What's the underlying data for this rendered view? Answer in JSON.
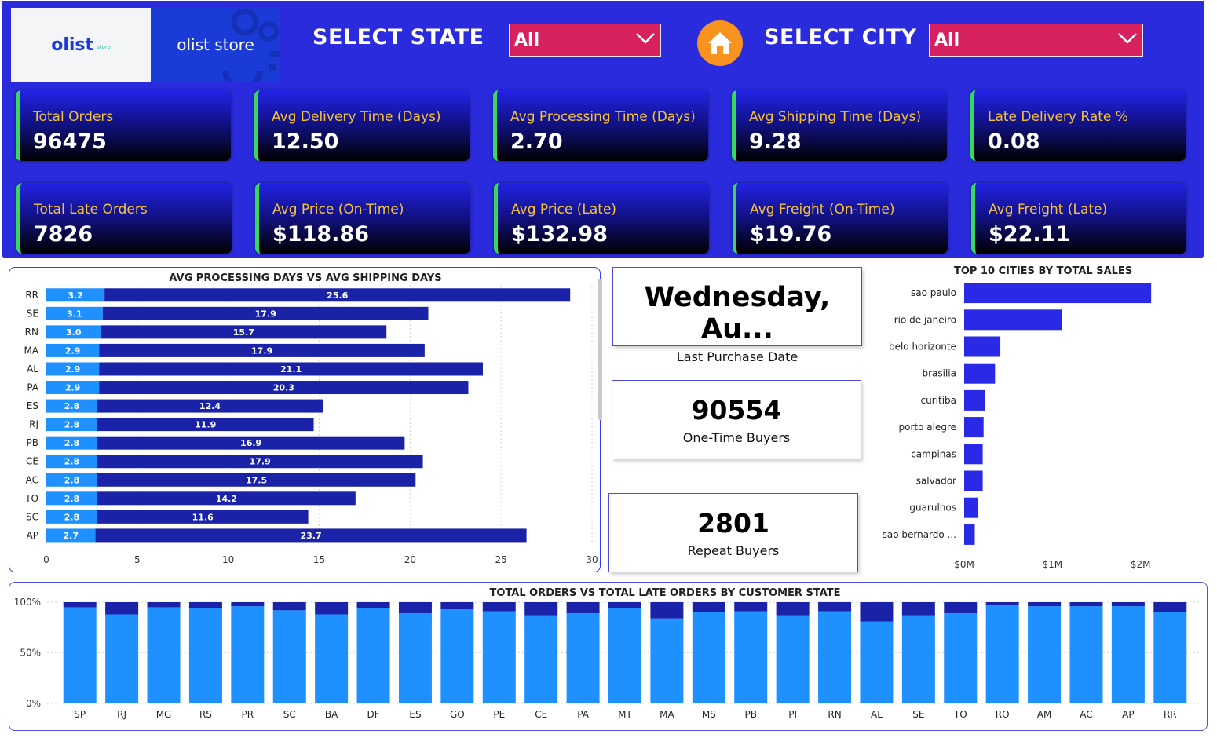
{
  "logos": {
    "olist_word": "olist",
    "olist_sub": "store",
    "store_word": "olist store"
  },
  "filters": {
    "state_label": "SELECT STATE",
    "state_value": "All",
    "city_label": "SELECT CITY",
    "city_value": "All"
  },
  "colors": {
    "band": "#2b2bde",
    "accent_green": "#37d860",
    "kpi_title": "#f5c13a",
    "dropdown": "#d6215e",
    "home": "#f7931e",
    "light_bar": "#1e90ff",
    "dark_bar": "#1a23a8",
    "city_bar": "#2a2ae6"
  },
  "kpis": [
    {
      "title": "Total Orders",
      "value": "96475"
    },
    {
      "title": "Avg Delivery Time (Days)",
      "value": "12.50"
    },
    {
      "title": "Avg Processing Time (Days)",
      "value": "2.70"
    },
    {
      "title": "Avg Shipping Time (Days)",
      "value": "9.28"
    },
    {
      "title": "Late Delivery Rate %",
      "value": "0.08"
    },
    {
      "title": "Total Late Orders",
      "value": "7826"
    },
    {
      "title": "Avg Price (On-Time)",
      "value": "$118.86"
    },
    {
      "title": "Avg Price (Late)",
      "value": "$132.98"
    },
    {
      "title": "Avg Freight (On-Time)",
      "value": "$19.76"
    },
    {
      "title": "Avg Freight (Late)",
      "value": "$22.11"
    }
  ],
  "cards": {
    "last_purchase": {
      "value": "Wednesday, Au...",
      "label": "Last Purchase Date"
    },
    "one_time": {
      "value": "90554",
      "label": "One-Time Buyers"
    },
    "repeat": {
      "value": "2801",
      "label": "Repeat Buyers"
    }
  },
  "chart_data": [
    {
      "type": "bar",
      "orientation": "horizontal",
      "stacked": true,
      "title": "AVG PROCESSING DAYS VS AVG SHIPPING DAYS",
      "categories": [
        "RR",
        "SE",
        "RN",
        "MA",
        "AL",
        "PA",
        "ES",
        "RJ",
        "PB",
        "CE",
        "AC",
        "TO",
        "SC",
        "AP"
      ],
      "series": [
        {
          "values": [
            3.2,
            3.1,
            3.0,
            2.9,
            2.9,
            2.9,
            2.8,
            2.8,
            2.8,
            2.8,
            2.8,
            2.8,
            2.8,
            2.7
          ],
          "color": "#1e90ff"
        },
        {
          "values": [
            25.6,
            17.9,
            15.7,
            17.9,
            21.1,
            20.3,
            12.4,
            11.9,
            16.9,
            17.9,
            17.5,
            14.2,
            11.6,
            23.7
          ],
          "color": "#1a23a8"
        }
      ],
      "xlim": [
        0,
        30
      ],
      "xticks": [
        "0",
        "5",
        "10",
        "15",
        "20",
        "25",
        "30"
      ],
      "grid": true
    },
    {
      "type": "bar",
      "orientation": "horizontal",
      "title": "TOP 10 CITIES BY TOTAL SALES",
      "categories": [
        "sao paulo",
        "rio de janeiro",
        "belo horizonte",
        "brasilia",
        "curitiba",
        "porto alegre",
        "campinas",
        "salvador",
        "guarulhos",
        "sao bernardo ..."
      ],
      "values": [
        2.12,
        1.11,
        0.41,
        0.35,
        0.24,
        0.22,
        0.21,
        0.21,
        0.16,
        0.12
      ],
      "unit": "$M",
      "xlim": [
        0,
        2.35
      ],
      "xticks": [
        "$0M",
        "$1M",
        "$2M"
      ],
      "color": "#2a2ae6"
    },
    {
      "type": "bar",
      "stacked": true,
      "percent": true,
      "title": "TOTAL ORDERS VS TOTAL LATE ORDERS BY CUSTOMER STATE",
      "categories": [
        "SP",
        "RJ",
        "MG",
        "RS",
        "PR",
        "SC",
        "BA",
        "DF",
        "ES",
        "GO",
        "PE",
        "CE",
        "PA",
        "MT",
        "MA",
        "MS",
        "PB",
        "PI",
        "RN",
        "AL",
        "SE",
        "TO",
        "RO",
        "AM",
        "AC",
        "AP",
        "RR"
      ],
      "series": [
        {
          "values": [
            95,
            88,
            95,
            94,
            96,
            92,
            88,
            94,
            89,
            93,
            91,
            87,
            89,
            94,
            84,
            90,
            91,
            87,
            91,
            81,
            87,
            89,
            97,
            96,
            96,
            96,
            90
          ],
          "color": "#1e90ff"
        },
        {
          "values": [
            5,
            12,
            5,
            6,
            4,
            8,
            12,
            6,
            11,
            7,
            9,
            13,
            11,
            6,
            16,
            10,
            9,
            13,
            9,
            19,
            13,
            11,
            3,
            4,
            4,
            4,
            10
          ],
          "color": "#1a23a8"
        }
      ],
      "ylim": [
        0,
        100
      ],
      "yticks": [
        "0%",
        "50%",
        "100%"
      ],
      "grid": true
    }
  ]
}
